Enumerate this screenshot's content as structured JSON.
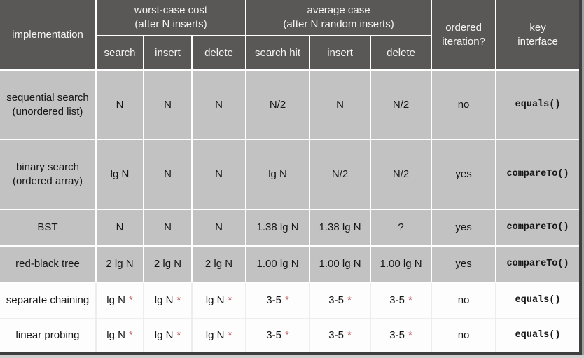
{
  "colors": {
    "header_bg": "#5a5757",
    "header_text": "#f6f4f4",
    "row_gray_bg": "#c2c2c2",
    "row_white_bg": "#fdfdfd",
    "grid_on_gray": "#ffffff",
    "grid_on_white": "#ededed",
    "body_text": "#161616",
    "asterisk": "#bf5a5f",
    "frame_dark": "#3f3f3f",
    "frame_light": "#9e9e9e"
  },
  "table": {
    "star_symbol": "*",
    "columns": {
      "implementation": "implementation",
      "groups": [
        {
          "line1": "worst-case cost",
          "line2": "(after N inserts)",
          "sub": [
            "search",
            "insert",
            "delete"
          ]
        },
        {
          "line1": "average case",
          "line2": "(after N random inserts)",
          "sub": [
            "search hit",
            "insert",
            "delete"
          ]
        }
      ],
      "ordered_iteration": {
        "line1": "ordered",
        "line2": "iteration?"
      },
      "key_interface": {
        "line1": "key",
        "line2": "interface"
      }
    },
    "rows": [
      {
        "implementation": [
          "sequential search",
          "(unordered list)"
        ],
        "values": [
          "N",
          "N",
          "N",
          "N/2",
          "N",
          "N/2"
        ],
        "starred": false,
        "ordered_iteration": "no",
        "key_interface": "equals()",
        "shade": "gray"
      },
      {
        "implementation": [
          "binary search",
          "(ordered array)"
        ],
        "values": [
          "lg N",
          "N",
          "N",
          "lg N",
          "N/2",
          "N/2"
        ],
        "starred": false,
        "ordered_iteration": "yes",
        "key_interface": "compareTo()",
        "shade": "gray"
      },
      {
        "implementation": [
          "BST"
        ],
        "values": [
          "N",
          "N",
          "N",
          "1.38 lg N",
          "1.38 lg N",
          "?"
        ],
        "starred": false,
        "ordered_iteration": "yes",
        "key_interface": "compareTo()",
        "shade": "gray"
      },
      {
        "implementation": [
          "red-black tree"
        ],
        "values": [
          "2 lg N",
          "2 lg N",
          "2 lg N",
          "1.00 lg N",
          "1.00 lg N",
          "1.00 lg N"
        ],
        "starred": false,
        "ordered_iteration": "yes",
        "key_interface": "compareTo()",
        "shade": "gray"
      },
      {
        "implementation": [
          "separate chaining"
        ],
        "values": [
          "lg N",
          "lg N",
          "lg N",
          "3-5",
          "3-5",
          "3-5"
        ],
        "starred": true,
        "ordered_iteration": "no",
        "key_interface": "equals()",
        "shade": "white"
      },
      {
        "implementation": [
          "linear probing"
        ],
        "values": [
          "lg N",
          "lg N",
          "lg N",
          "3-5",
          "3-5",
          "3-5"
        ],
        "starred": true,
        "ordered_iteration": "no",
        "key_interface": "equals()",
        "shade": "white"
      }
    ]
  }
}
